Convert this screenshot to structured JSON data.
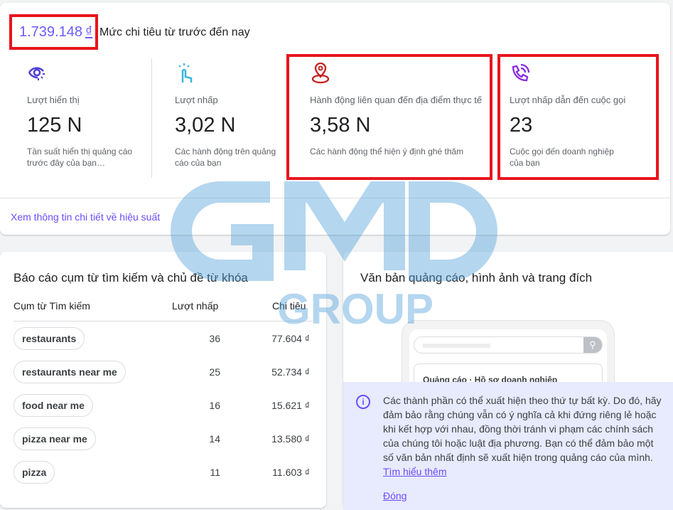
{
  "summary": {
    "total": "1.739.148",
    "currency": "₫",
    "total_label": "Mức chi tiêu từ trước đến nay"
  },
  "stats": [
    {
      "icon": "eye-icon",
      "label": "Lượt hiển thị",
      "value": "125 N",
      "desc": "Tần suất hiển thị quảng cáo trước đây của bạn…",
      "color": "#4b3fd1"
    },
    {
      "icon": "tap-icon",
      "label": "Lượt nhấp",
      "value": "3,02 N",
      "desc": "Các hành động trên quảng cáo của bạn",
      "color": "#3ab4d9"
    },
    {
      "icon": "location-pin-icon",
      "label": "Hành động liên quan đến địa điểm thực tế",
      "value": "3,58 N",
      "desc": "Các hành động thể hiện ý định ghé thăm",
      "color": "#c5221f"
    },
    {
      "icon": "phone-call-icon",
      "label": "Lượt nhấp dẫn đến cuộc gọi",
      "value": "23",
      "desc": "Cuộc gọi đến doanh nghiệp của bạn",
      "color": "#8a2be2"
    }
  ],
  "performance_link": "Xem thông tin chi tiết về hiệu suất",
  "search_report": {
    "title": "Báo cáo cụm từ tìm kiếm và chủ đề từ khóa",
    "headers": [
      "Cụm từ Tìm kiếm",
      "Lượt nhấp",
      "Chi tiêu"
    ],
    "rows": [
      {
        "term": "restaurants",
        "clicks": "36",
        "cost": "77.604 ₫"
      },
      {
        "term": "restaurants near me",
        "clicks": "25",
        "cost": "52.734 ₫"
      },
      {
        "term": "food near me",
        "clicks": "16",
        "cost": "15.621 ₫"
      },
      {
        "term": "pizza near me",
        "clicks": "14",
        "cost": "13.580 ₫"
      },
      {
        "term": "pizza",
        "clicks": "11",
        "cost": "11.603 ₫"
      }
    ]
  },
  "ad_preview": {
    "title": "Văn bản quảng cáo, hình ảnh và trang đích",
    "result_label": "Quảng cáo · Hồ sơ doanh nghiệp",
    "info_text": "Các thành phần có thể xuất hiện theo thứ tự bất kỳ. Do đó, hãy đảm bảo rằng chúng vẫn có ý nghĩa cả khi đứng riêng lẻ hoặc khi kết hợp với nhau, đồng thời tránh vi phạm các chính sách của chúng tôi hoặc luật địa phương. Bạn có thể đảm bảo một số văn bản nhất định sẽ xuất hiện trong quảng cáo của mình.",
    "learn_more": "Tìm hiểu thêm",
    "close": "Đóng"
  },
  "watermark": {
    "text": "GMD GROUP",
    "color": "#5aa5dc"
  },
  "accent": "#6a4cff",
  "highlight_color": "#e8141c"
}
